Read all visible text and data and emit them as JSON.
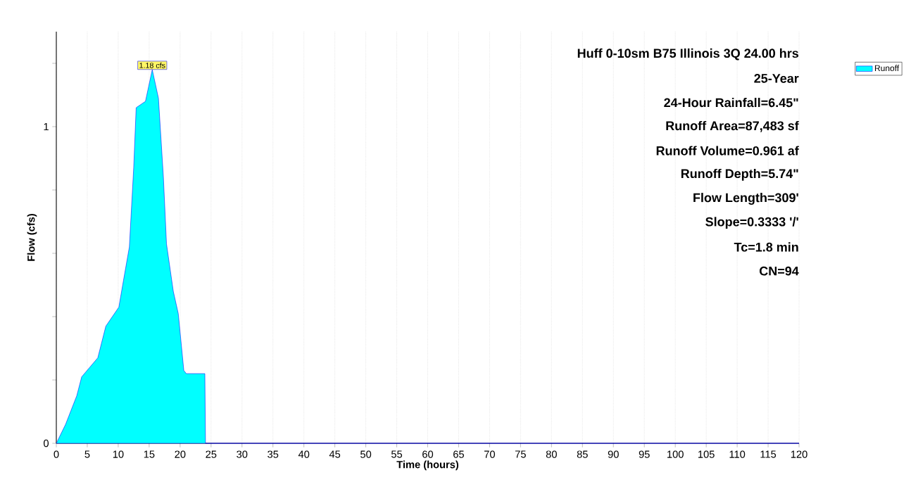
{
  "chart_data": {
    "type": "area",
    "xlabel": "Time  (hours)",
    "ylabel": "Flow  (cfs)",
    "annotations": [
      "Huff 0-10sm B75 Illinois 3Q 24.00 hrs",
      "25-Year",
      "24-Hour Rainfall=6.45\"",
      "Runoff Area=87,483 sf",
      "Runoff Volume=0.961 af",
      "Runoff Depth=5.74\"",
      "Flow Length=309'",
      "Slope=0.3333 '/'",
      "Tc=1.8 min",
      "CN=94",
      {
        "text": "1.18 cfs",
        "x": 15.5,
        "y": 1.18
      }
    ],
    "x": [
      0,
      1.5,
      3.3,
      4.1,
      6.7,
      8,
      10.1,
      10.9,
      11.8,
      12.5,
      12.9,
      14.4,
      15.5,
      16.5,
      17.3,
      17.8,
      18.9,
      19.7,
      20.6,
      21,
      24,
      24.1,
      120
    ],
    "series": [
      {
        "name": "Runoff",
        "color": "#00ffff",
        "values": [
          0,
          0.06,
          0.15,
          0.21,
          0.27,
          0.37,
          0.43,
          0.52,
          0.62,
          0.87,
          1.06,
          1.08,
          1.18,
          1.09,
          0.84,
          0.63,
          0.48,
          0.41,
          0.23,
          0.22,
          0.22,
          0,
          0
        ]
      }
    ],
    "xlim": [
      0,
      120
    ],
    "xticks": [
      0,
      5,
      10,
      15,
      20,
      25,
      30,
      35,
      40,
      45,
      50,
      55,
      60,
      65,
      70,
      75,
      80,
      85,
      90,
      95,
      100,
      105,
      110,
      115,
      120
    ],
    "ylim": [
      0,
      1.3
    ],
    "yticks": [
      0,
      {
        "value": 0.2,
        "label": null
      },
      {
        "value": 0.4,
        "label": null
      },
      {
        "value": 0.6,
        "label": null
      },
      {
        "value": 0.8,
        "label": null
      },
      1,
      {
        "value": 1.2,
        "label": null
      }
    ],
    "grid": "x",
    "legend": "top right"
  }
}
